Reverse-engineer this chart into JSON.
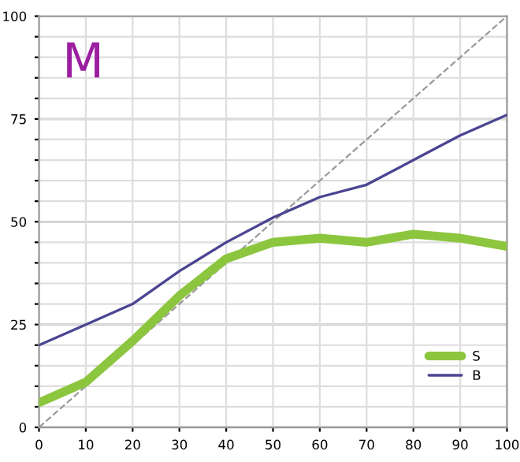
{
  "chart_data": {
    "type": "line",
    "title": "M",
    "x": [
      0,
      10,
      20,
      30,
      40,
      50,
      60,
      70,
      80,
      90,
      100
    ],
    "series": [
      {
        "name": "S",
        "color": "#8cc63f",
        "values": [
          6,
          11,
          21,
          32,
          41,
          45,
          46,
          45,
          47,
          46,
          44
        ]
      },
      {
        "name": "B",
        "color": "#4b4592",
        "values": [
          20,
          25,
          30,
          38,
          45,
          51,
          56,
          59,
          65,
          71,
          76
        ]
      },
      {
        "color": "#999999",
        "line_style": "dashed",
        "x": [
          0,
          100
        ],
        "values": [
          0,
          100
        ]
      }
    ],
    "xlim": [
      0,
      100
    ],
    "xticks": [
      0,
      10,
      20,
      30,
      40,
      50,
      60,
      70,
      80,
      90,
      100
    ],
    "ylim": [
      0,
      100
    ],
    "yticks": [
      0,
      {
        "value": 5,
        "label": null
      },
      {
        "value": 10,
        "label": null
      },
      {
        "value": 15,
        "label": null
      },
      {
        "value": 20,
        "label": null
      },
      25,
      {
        "value": 30,
        "label": null
      },
      {
        "value": 35,
        "label": null
      },
      {
        "value": 40,
        "label": null
      },
      {
        "value": 45,
        "label": null
      },
      50,
      {
        "value": 55,
        "label": null
      },
      {
        "value": 60,
        "label": null
      },
      {
        "value": 65,
        "label": null
      },
      {
        "value": 70,
        "label": null
      },
      75,
      {
        "value": 80,
        "label": null
      },
      {
        "value": 85,
        "label": null
      },
      {
        "value": 90,
        "label": null
      },
      {
        "value": 95,
        "label": null
      },
      100
    ],
    "grid": true,
    "legend": "bottom right",
    "line_style": "solid",
    "marker": "none"
  }
}
